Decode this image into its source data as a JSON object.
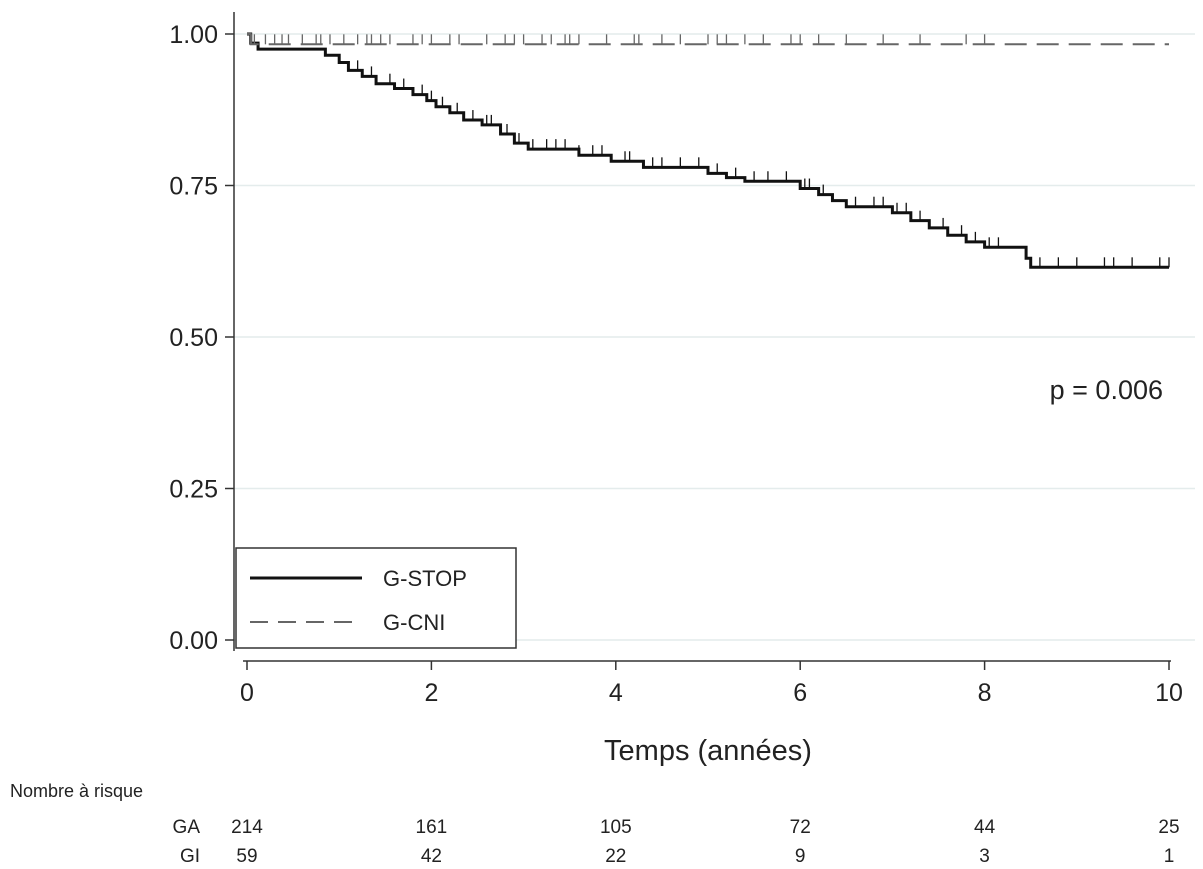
{
  "chart_data": {
    "type": "line",
    "title": "",
    "xlabel": "Temps (années)",
    "ylabel": "",
    "xlim": [
      0,
      10
    ],
    "ylim": [
      0,
      1
    ],
    "x_ticks": [
      "0",
      "2",
      "4",
      "6",
      "8",
      "10"
    ],
    "y_ticks": [
      "0.00",
      "0.25",
      "0.50",
      "0.75",
      "1.00"
    ],
    "grid": "horizontal",
    "legend_position": "bottom-left",
    "annotation": "p = 0.006",
    "series": [
      {
        "name": "G-STOP",
        "line_style": "solid",
        "color": "#111111",
        "steps": [
          [
            0,
            1.0
          ],
          [
            0.04,
            0.985
          ],
          [
            0.12,
            0.975
          ],
          [
            0.85,
            0.965
          ],
          [
            1.0,
            0.953
          ],
          [
            1.1,
            0.94
          ],
          [
            1.25,
            0.93
          ],
          [
            1.4,
            0.918
          ],
          [
            1.6,
            0.91
          ],
          [
            1.8,
            0.9
          ],
          [
            1.95,
            0.89
          ],
          [
            2.05,
            0.88
          ],
          [
            2.2,
            0.87
          ],
          [
            2.35,
            0.858
          ],
          [
            2.55,
            0.85
          ],
          [
            2.75,
            0.835
          ],
          [
            2.9,
            0.82
          ],
          [
            3.05,
            0.81
          ],
          [
            3.6,
            0.8
          ],
          [
            3.95,
            0.79
          ],
          [
            4.3,
            0.78
          ],
          [
            5.0,
            0.77
          ],
          [
            5.2,
            0.763
          ],
          [
            5.4,
            0.757
          ],
          [
            6.0,
            0.745
          ],
          [
            6.2,
            0.735
          ],
          [
            6.35,
            0.725
          ],
          [
            6.5,
            0.715
          ],
          [
            7.0,
            0.705
          ],
          [
            7.2,
            0.692
          ],
          [
            7.4,
            0.68
          ],
          [
            7.6,
            0.668
          ],
          [
            7.8,
            0.657
          ],
          [
            8.0,
            0.648
          ],
          [
            8.45,
            0.63
          ],
          [
            8.5,
            0.615
          ],
          [
            10.0,
            0.615
          ]
        ],
        "censor_x": [
          1.2,
          1.35,
          1.55,
          1.7,
          1.9,
          2.0,
          2.12,
          2.28,
          2.45,
          2.6,
          2.65,
          2.82,
          2.95,
          3.1,
          3.25,
          3.35,
          3.45,
          3.6,
          3.75,
          3.85,
          4.1,
          4.15,
          4.4,
          4.5,
          4.7,
          4.9,
          5.1,
          5.3,
          5.5,
          5.65,
          5.85,
          6.05,
          6.1,
          6.25,
          6.6,
          6.8,
          6.9,
          7.05,
          7.15,
          7.3,
          7.55,
          7.75,
          7.9,
          8.05,
          8.15,
          8.6,
          8.8,
          9.0,
          9.3,
          9.4,
          9.6,
          9.9,
          10.0
        ]
      },
      {
        "name": "G-CNI",
        "line_style": "dashed",
        "color": "#666666",
        "steps": [
          [
            0,
            1.0
          ],
          [
            0.04,
            0.983
          ],
          [
            10.0,
            0.983
          ]
        ],
        "censor_x": [
          0.05,
          0.08,
          0.2,
          0.3,
          0.38,
          0.45,
          0.6,
          0.75,
          0.8,
          0.9,
          1.05,
          1.2,
          1.3,
          1.35,
          1.45,
          1.55,
          1.8,
          1.9,
          2.0,
          2.2,
          2.3,
          2.6,
          2.8,
          2.9,
          3.0,
          3.2,
          3.3,
          3.45,
          3.5,
          3.6,
          3.9,
          4.2,
          4.25,
          4.5,
          4.7,
          5.0,
          5.1,
          5.2,
          5.4,
          5.6,
          5.9,
          6.0,
          6.2,
          6.5,
          6.9,
          7.3,
          7.8,
          8.0
        ]
      }
    ],
    "risk_table": {
      "title": "Nombre à risque",
      "rows": [
        {
          "label": "GA",
          "values": [
            "214",
            "161",
            "105",
            "72",
            "44",
            "25"
          ]
        },
        {
          "label": "GI",
          "values": [
            "59",
            "42",
            "22",
            "9",
            "3",
            "1"
          ]
        }
      ]
    }
  }
}
